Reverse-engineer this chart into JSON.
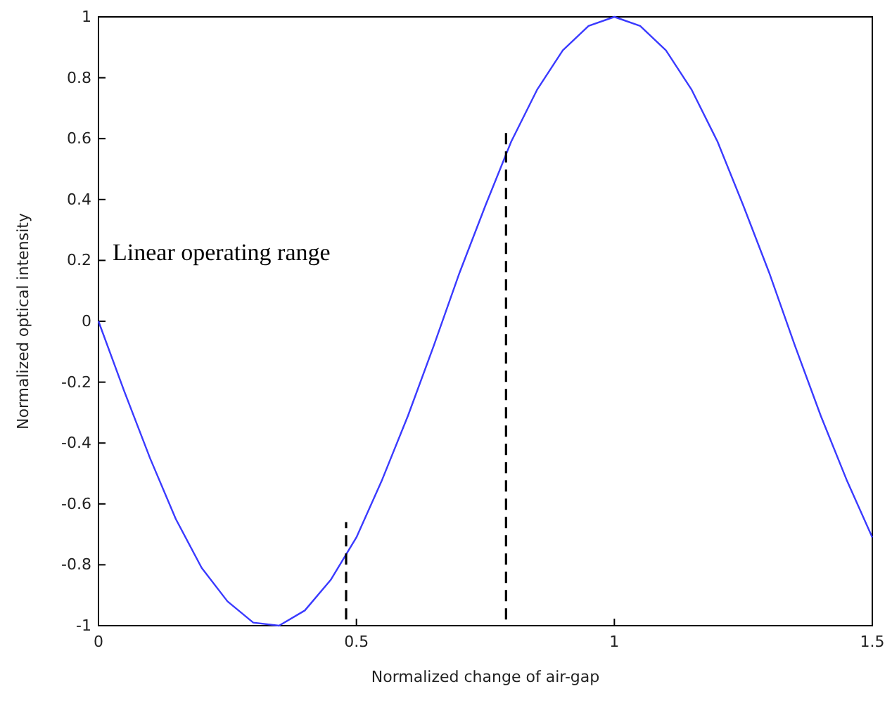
{
  "chart_data": {
    "type": "line",
    "xlabel": "Normalized change of air-gap",
    "ylabel": "Normalized optical intensity",
    "xlim": [
      0,
      1.5
    ],
    "ylim": [
      -1,
      1
    ],
    "xticks": [
      0,
      0.5,
      1,
      1.5
    ],
    "yticks": [
      -1,
      -0.8,
      -0.6,
      -0.4,
      -0.2,
      0,
      0.2,
      0.4,
      0.6,
      0.8,
      1
    ],
    "series": [
      {
        "color": "#3a3aff",
        "line_style": "solid",
        "x": [
          0,
          0.05,
          0.1,
          0.15,
          0.2,
          0.25,
          0.3,
          0.35,
          0.4,
          0.45,
          0.5,
          0.55,
          0.6,
          0.65,
          0.7,
          0.75,
          0.8,
          0.85,
          0.9,
          0.95,
          1,
          1.05,
          1.1,
          1.15,
          1.2,
          1.25,
          1.3,
          1.35,
          1.4,
          1.45,
          1.5
        ],
        "values": [
          0,
          -0.23,
          -0.45,
          -0.65,
          -0.81,
          -0.92,
          -0.99,
          -1,
          -0.95,
          -0.85,
          -0.71,
          -0.52,
          -0.31,
          -0.08,
          0.16,
          0.38,
          0.59,
          0.76,
          0.89,
          0.97,
          1,
          0.97,
          0.89,
          0.76,
          0.59,
          0.38,
          0.16,
          -0.08,
          -0.31,
          -0.52,
          -0.71
        ]
      },
      {
        "color": "#000000",
        "line_style": "dashed",
        "x": [
          0.48,
          0.48
        ],
        "values": [
          -0.98,
          -0.66
        ]
      },
      {
        "color": "#000000",
        "line_style": "dashed",
        "x": [
          0.79,
          0.79
        ],
        "values": [
          -0.98,
          0.62
        ]
      }
    ],
    "annotations": [
      "Linear operating range"
    ]
  }
}
